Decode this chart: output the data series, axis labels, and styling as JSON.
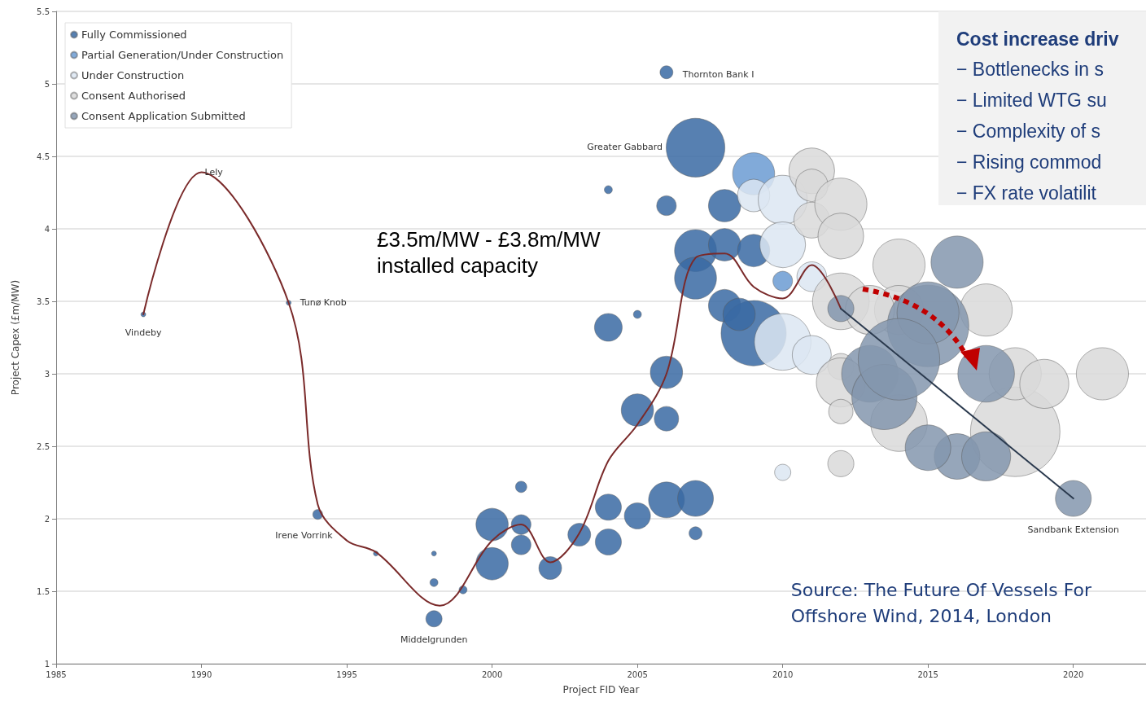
{
  "chart_data": {
    "type": "bubble",
    "xlabel": "Project FID Year",
    "ylabel": "Project Capex (£m/MW)",
    "xlim": [
      1985,
      2022.5
    ],
    "xticks": [
      1985,
      1990,
      1995,
      2000,
      2005,
      2010,
      2015,
      2020
    ],
    "ylim": [
      1,
      5.5
    ],
    "yticks": [
      1,
      1.5,
      2,
      2.5,
      3,
      3.5,
      4,
      4.5,
      5,
      5.5
    ],
    "grid": "y",
    "legend": "top left",
    "series": [
      {
        "name": "Fully Commissioned",
        "color": "#3a6aa3",
        "x": [
          1988,
          1993,
          1994,
          1996,
          1998,
          1998,
          1998,
          1999,
          2000,
          2000,
          2001,
          2001,
          2001,
          2002,
          2003,
          2004,
          2004,
          2004,
          2004,
          2005,
          2005,
          2005,
          2006,
          2006,
          2006,
          2006,
          2006,
          2007,
          2007,
          2007,
          2007,
          2007,
          2008,
          2008,
          2008,
          2009,
          2009,
          2008.5
        ],
        "values": [
          3.41,
          3.49,
          2.03,
          1.76,
          1.76,
          1.56,
          1.31,
          1.51,
          1.96,
          1.69,
          2.22,
          1.96,
          1.82,
          1.66,
          1.89,
          2.08,
          1.84,
          3.32,
          4.27,
          3.41,
          2.75,
          2.02,
          3.01,
          2.69,
          2.13,
          4.16,
          5.08,
          4.56,
          2.14,
          1.9,
          3.85,
          3.66,
          4.16,
          3.47,
          3.89,
          3.85,
          3.28,
          3.41
        ],
        "sizes": [
          0.003,
          0.003,
          0.012,
          0.003,
          0.003,
          0.008,
          0.033,
          0.008,
          0.13,
          0.13,
          0.016,
          0.048,
          0.048,
          0.065,
          0.065,
          0.085,
          0.085,
          0.096,
          0.008,
          0.008,
          0.13,
          0.085,
          0.13,
          0.074,
          0.16,
          0.048,
          0.021,
          0.43,
          0.16,
          0.021,
          0.22,
          0.22,
          0.13,
          0.13,
          0.13,
          0.13,
          0.53,
          0.13
        ]
      },
      {
        "name": "Partial Generation/Under Construction",
        "color": "#6b9bd2",
        "x": [
          2009,
          2010
        ],
        "values": [
          4.38,
          3.64
        ],
        "sizes": [
          0.22,
          0.048
        ]
      },
      {
        "name": "Under Construction",
        "color": "#dce6f2",
        "x": [
          2009,
          2010,
          2010,
          2010,
          2011,
          2011,
          2010
        ],
        "values": [
          4.23,
          4.2,
          3.89,
          3.22,
          3.13,
          3.67,
          2.32
        ],
        "sizes": [
          0.13,
          0.3,
          0.26,
          0.4,
          0.19,
          0.11,
          0.033
        ]
      },
      {
        "name": "Consent Authorised",
        "color": "#d9d9d9",
        "x": [
          2011,
          2011,
          2011,
          2012,
          2012,
          2012,
          2012,
          2012,
          2012,
          2012,
          2014,
          2014,
          2014,
          2013,
          2017,
          2018,
          2018,
          2019,
          2021
        ],
        "values": [
          4.4,
          4.3,
          4.06,
          4.17,
          3.95,
          3.5,
          3.05,
          2.38,
          2.94,
          2.74,
          3.75,
          3.44,
          2.66,
          3.44,
          3.44,
          2.6,
          3.0,
          2.93,
          3.0
        ],
        "sizes": [
          0.26,
          0.13,
          0.16,
          0.34,
          0.26,
          0.4,
          0.085,
          0.085,
          0.3,
          0.074,
          0.34,
          0.3,
          0.4,
          0.3,
          0.34,
          1,
          0.34,
          0.3,
          0.34
        ]
      },
      {
        "name": "Consent Application Submitted",
        "color": "#8497ae",
        "x": [
          2012,
          2013,
          2013.5,
          2015,
          2015,
          2014,
          2016,
          2016,
          2015,
          2017,
          2017,
          2020
        ],
        "values": [
          3.45,
          3.0,
          2.84,
          3.33,
          3.42,
          3.1,
          3.77,
          2.43,
          2.49,
          2.43,
          3.0,
          2.14
        ],
        "sizes": [
          0.085,
          0.4,
          0.53,
          0.83,
          0.48,
          0.83,
          0.34,
          0.26,
          0.26,
          0.3,
          0.4,
          0.16
        ]
      },
      {
        "type": "line",
        "color": "#7a2a2a",
        "x": [
          1988,
          1990,
          1993,
          1994,
          1995,
          1996,
          1998.2,
          2000,
          2001,
          2002,
          2003,
          2004,
          2005,
          2006,
          2007,
          2008,
          2009,
          2010,
          2011,
          2012
        ],
        "values": [
          3.41,
          4.39,
          3.49,
          2.1,
          1.85,
          1.77,
          1.4,
          1.85,
          1.96,
          1.7,
          1.9,
          2.4,
          2.65,
          3.0,
          3.8,
          3.83,
          3.6,
          3.52,
          3.75,
          3.45
        ]
      },
      {
        "type": "line",
        "color": "#2b3a4e",
        "x": [
          2012,
          2020
        ],
        "values": [
          3.45,
          2.14
        ]
      }
    ],
    "annotations": [
      "£3.5m/MW - £3.8m/MW\ninstalled capacity",
      "Cost increase driv\n− Bottlenecks in s\n− Limited WTG su\n− Complexity of s\n− Rising commod\n− FX rate volatilit",
      "Source: The Future Of Vessels For\nOffshore Wind, 2014, London",
      {
        "text": "Vindeby",
        "x": 1988,
        "y": 3.41
      },
      {
        "text": "Lely",
        "x": 1990,
        "y": 4.39
      },
      {
        "text": "Tunø Knob",
        "x": 1993,
        "y": 3.49
      },
      {
        "text": "Irene Vorrink",
        "x": 1994,
        "y": 2.03
      },
      {
        "text": "Middelgrunden",
        "x": 1998,
        "y": 1.31
      },
      {
        "text": "Thornton Bank I",
        "x": 2006,
        "y": 5.08
      },
      "Greater Gabbard",
      {
        "text": "Sandbank Extension",
        "x": 2020,
        "y": 2.14
      }
    ]
  }
}
